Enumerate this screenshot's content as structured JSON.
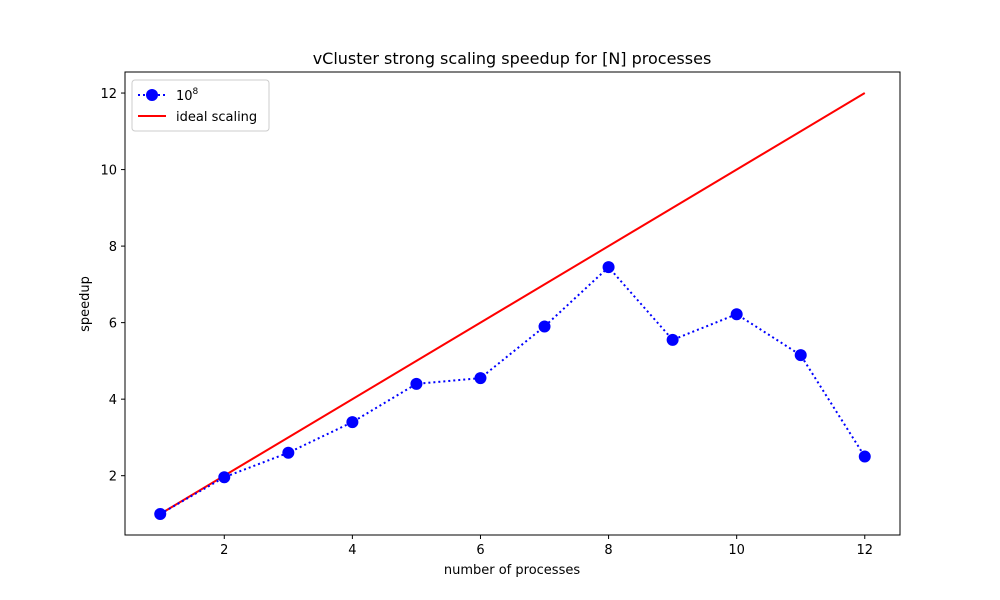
{
  "chart_data": {
    "type": "line",
    "title": "vCluster strong scaling speedup for [N] processes",
    "xlabel": "number of processes",
    "ylabel": "speedup",
    "xlim": [
      0.45,
      12.55
    ],
    "ylim": [
      0.45,
      12.55
    ],
    "xticks": [
      2,
      4,
      6,
      8,
      10,
      12
    ],
    "yticks": [
      2,
      4,
      6,
      8,
      10,
      12
    ],
    "grid": false,
    "legend_position": "top-left",
    "series": [
      {
        "name_base": "10",
        "name_exponent": "8",
        "color": "#0000ff",
        "line_style": "dotted",
        "marker": "circle",
        "x": [
          1,
          2,
          3,
          4,
          5,
          6,
          7,
          8,
          9,
          10,
          11,
          12
        ],
        "y": [
          1.0,
          1.96,
          2.6,
          3.4,
          4.4,
          4.55,
          5.9,
          7.45,
          5.55,
          6.22,
          5.15,
          2.5
        ]
      },
      {
        "name": "ideal scaling",
        "color": "#ff0000",
        "line_style": "solid",
        "marker": "none",
        "x": [
          1,
          12
        ],
        "y": [
          1,
          12
        ]
      }
    ]
  }
}
